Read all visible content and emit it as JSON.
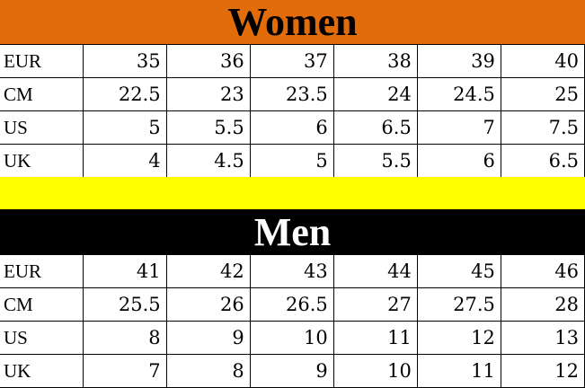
{
  "colors": {
    "women_banner": "#e36c0a",
    "spacer": "#ffff00",
    "men_banner": "#000000"
  },
  "women": {
    "title": "Women",
    "rows": [
      {
        "label": "EUR",
        "values": [
          "35",
          "36",
          "37",
          "38",
          "39",
          "40"
        ]
      },
      {
        "label": "CM",
        "values": [
          "22.5",
          "23",
          "23.5",
          "24",
          "24.5",
          "25"
        ]
      },
      {
        "label": "US",
        "values": [
          "5",
          "5.5",
          "6",
          "6.5",
          "7",
          "7.5"
        ]
      },
      {
        "label": "UK",
        "values": [
          "4",
          "4.5",
          "5",
          "5.5",
          "6",
          "6.5"
        ]
      }
    ]
  },
  "men": {
    "title": "Men",
    "rows": [
      {
        "label": "EUR",
        "values": [
          "41",
          "42",
          "43",
          "44",
          "45",
          "46"
        ]
      },
      {
        "label": "CM",
        "values": [
          "25.5",
          "26",
          "26.5",
          "27",
          "27.5",
          "28"
        ]
      },
      {
        "label": "US",
        "values": [
          "8",
          "9",
          "10",
          "11",
          "12",
          "13"
        ]
      },
      {
        "label": "UK",
        "values": [
          "7",
          "8",
          "9",
          "10",
          "11",
          "12"
        ]
      }
    ]
  }
}
